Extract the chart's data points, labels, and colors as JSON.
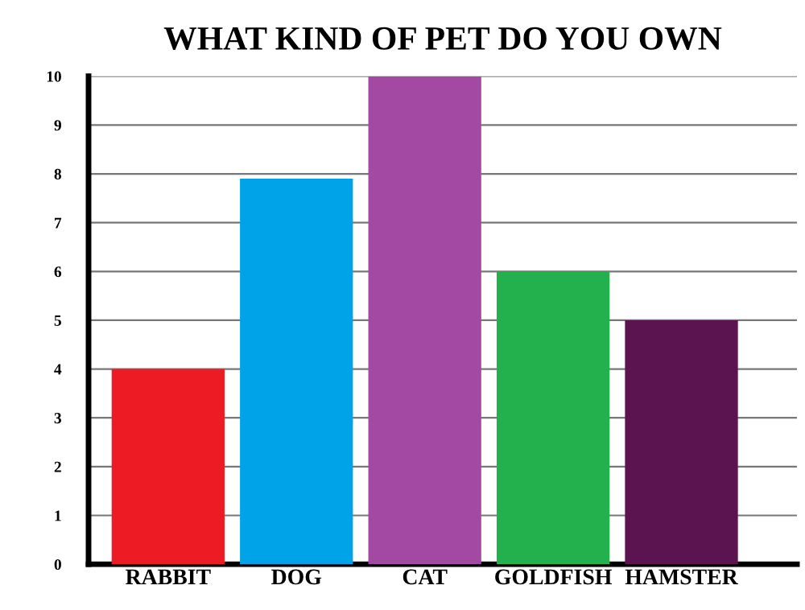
{
  "chart_data": {
    "type": "bar",
    "title": "WHAT KIND OF PET DO YOU OWN",
    "categories": [
      "RABBIT",
      "DOG",
      "CAT",
      "GOLDFISH",
      "HAMSTER"
    ],
    "values": [
      4,
      7.9,
      10,
      6,
      5
    ],
    "colors": [
      "#ed1c24",
      "#00a2e8",
      "#a349a4",
      "#22b14c",
      "#5c1450"
    ],
    "ylim": [
      0,
      10
    ],
    "yticks": [
      0,
      1,
      2,
      3,
      4,
      5,
      6,
      7,
      8,
      9,
      10
    ],
    "grid": "y",
    "legend": false
  }
}
